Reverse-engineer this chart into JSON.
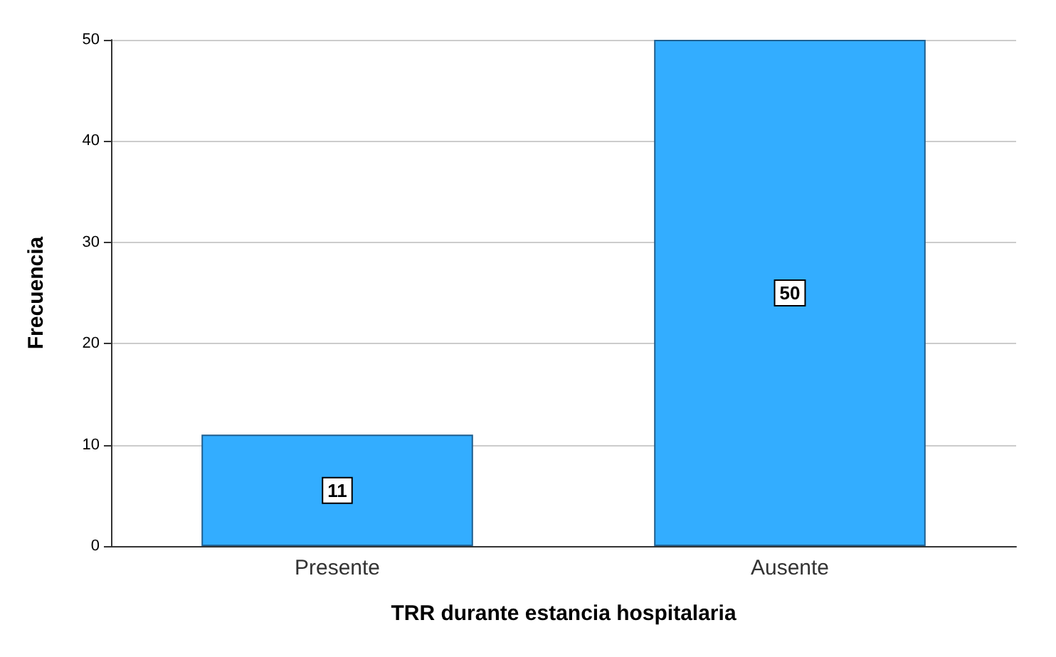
{
  "chart_data": {
    "type": "bar",
    "xlabel": "TRR durante estancia hospitalaria",
    "ylabel": "Frecuencia",
    "categories": [
      "Presente",
      "Ausente"
    ],
    "values": [
      11,
      50
    ],
    "color": "#33adff",
    "ylim": [
      0,
      50
    ],
    "yticks": [
      0,
      10,
      20,
      30,
      40,
      50
    ],
    "grid": "y",
    "data_labels": true
  }
}
